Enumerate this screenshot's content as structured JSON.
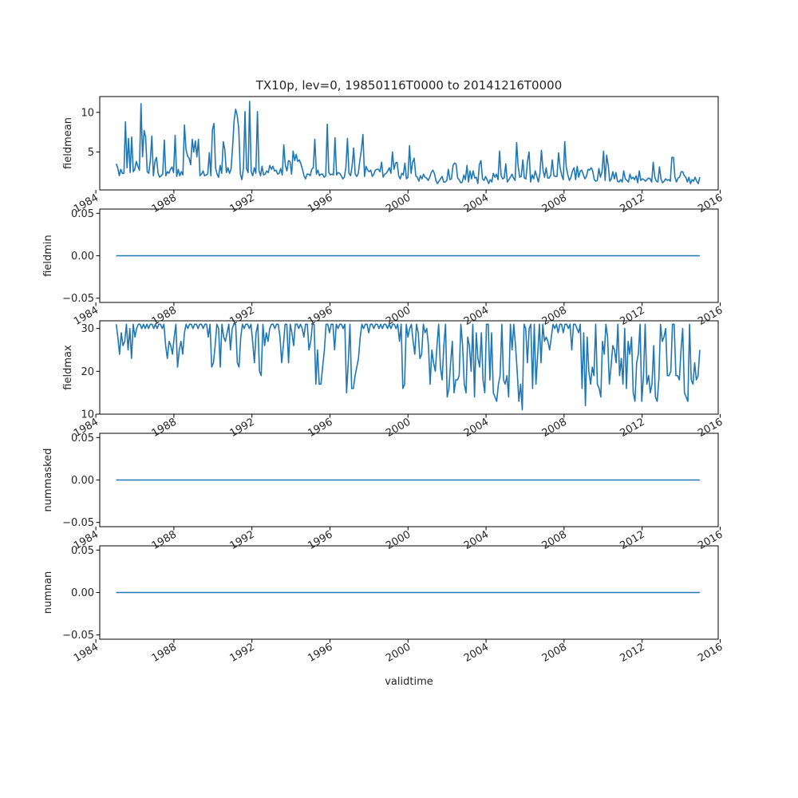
{
  "chart_data": [
    {
      "type": "line",
      "title": "TX10p, lev=0, 19850116T0000 to 20141216T0000",
      "ylabel": "fieldmean",
      "xlabel": "",
      "x_range": [
        "1985-01-16",
        "2014-12-16"
      ],
      "xlim": [
        1984.2,
        2015.9
      ],
      "ylim": [
        0.2,
        12.0
      ],
      "xticks": [
        1984,
        1988,
        1992,
        1996,
        2000,
        2004,
        2008,
        2012,
        2016
      ],
      "yticks": [
        5,
        10
      ],
      "ytick_labels": [
        "5",
        "10"
      ],
      "color": "#1f77b4",
      "values": [
        3.5,
        3.0,
        2.0,
        2.8,
        2.3,
        2.3,
        8.8,
        3.0,
        6.7,
        2.4,
        6.9,
        2.5,
        2.8,
        3.8,
        3.2,
        2.7,
        11.1,
        4.4,
        7.7,
        6.9,
        2.5,
        2.3,
        4.0,
        7.0,
        2.0,
        3.8,
        4.3,
        2.3,
        1.8,
        2.0,
        2.2,
        6.5,
        2.0,
        2.5,
        2.3,
        2.8,
        3.1,
        2.4,
        7.1,
        1.9,
        2.8,
        2.0,
        2.5,
        2.1,
        8.4,
        5.3,
        4.5,
        4.2,
        3.4,
        6.6,
        5.0,
        6.4,
        4.4,
        6.6,
        2.0,
        2.2,
        2.6,
        2.0,
        2.1,
        2.2,
        4.9,
        2.0,
        7.8,
        8.6,
        3.0,
        2.2,
        1.8,
        3.3,
        2.3,
        6.3,
        5.3,
        2.4,
        3.0,
        2.3,
        2.8,
        5.5,
        9.0,
        10.4,
        9.6,
        7.9,
        2.2,
        1.5,
        3.0,
        10.1,
        2.9,
        2.4,
        11.4,
        2.5,
        2.0,
        3.0,
        2.3,
        10.1,
        2.7,
        2.0,
        3.2,
        2.1,
        2.2,
        2.6,
        2.4,
        3.3,
        2.8,
        3.2,
        2.6,
        2.7,
        2.2,
        2.3,
        2.9,
        2.1,
        5.9,
        3.3,
        2.6,
        3.9,
        3.8,
        2.2,
        5.1,
        3.9,
        4.7,
        3.8,
        4.0,
        3.5,
        2.8,
        2.0,
        1.6,
        2.2,
        2.2,
        2.0,
        2.8,
        3.0,
        6.6,
        2.2,
        2.7,
        2.0,
        2.2,
        2.2,
        1.8,
        2.0,
        8.5,
        2.4,
        2.1,
        2.2,
        2.1,
        6.8,
        2.1,
        2.4,
        2.3,
        2.0,
        1.6,
        1.8,
        3.0,
        6.7,
        2.3,
        2.0,
        3.2,
        5.5,
        2.2,
        1.9,
        2.3,
        3.9,
        5.3,
        7.2,
        1.9,
        3.2,
        2.7,
        2.5,
        2.7,
        1.9,
        2.2,
        2.7,
        2.8,
        2.8,
        2.5,
        3.7,
        1.8,
        2.2,
        2.3,
        2.6,
        3.0,
        2.3,
        5.0,
        2.8,
        3.6,
        3.7,
        2.0,
        1.6,
        2.3,
        2.1,
        3.6,
        1.6,
        1.8,
        5.8,
        2.3,
        3.7,
        4.2,
        2.0,
        1.8,
        1.3,
        2.0,
        1.6,
        2.2,
        1.8,
        1.7,
        1.4,
        1.8,
        2.4,
        2.7,
        2.3,
        1.4,
        1.0,
        1.3,
        1.6,
        1.9,
        1.2,
        1.2,
        1.4,
        2.8,
        1.5,
        1.6,
        3.3,
        3.6,
        3.5,
        1.7,
        1.5,
        1.1,
        1.2,
        2.1,
        1.5,
        3.3,
        1.2,
        2.6,
        1.6,
        2.6,
        1.7,
        1.8,
        1.0,
        3.4,
        3.9,
        1.6,
        1.4,
        1.9,
        1.5,
        1.0,
        1.5,
        1.2,
        2.3,
        1.8,
        2.2,
        1.5,
        5.1,
        2.0,
        1.6,
        1.7,
        3.5,
        1.2,
        1.5,
        1.8,
        2.2,
        1.7,
        1.4,
        6.2,
        3.2,
        1.8,
        1.9,
        4.0,
        1.7,
        1.6,
        3.8,
        5.0,
        1.2,
        2.1,
        1.6,
        2.6,
        1.9,
        1.2,
        2.3,
        5.2,
        2.7,
        1.8,
        3.0,
        1.7,
        1.7,
        2.1,
        4.0,
        2.0,
        1.9,
        1.9,
        4.9,
        3.0,
        2.1,
        1.5,
        6.3,
        3.1,
        2.1,
        1.4,
        1.8,
        2.6,
        3.0,
        1.5,
        3.2,
        1.8,
        2.6,
        2.7,
        2.1,
        1.6,
        1.9,
        2.8,
        2.7,
        3.0,
        2.6,
        1.5,
        1.3,
        1.4,
        2.9,
        1.8,
        2.5,
        5.1,
        1.4,
        4.6,
        3.3,
        1.3,
        1.6,
        2.5,
        1.6,
        2.4,
        1.3,
        1.2,
        1.5,
        1.2,
        2.6,
        1.6,
        1.4,
        1.2,
        2.2,
        1.6,
        1.8,
        1.5,
        2.0,
        1.1,
        2.6,
        1.4,
        1.6,
        1.5,
        1.3,
        1.5,
        1.7,
        1.6,
        1.2,
        3.7,
        1.8,
        1.3,
        1.2,
        3.1,
        1.6,
        1.1,
        1.3,
        1.6,
        1.4,
        1.5,
        1.3,
        4.3,
        4.3,
        1.8,
        1.2,
        1.7,
        1.8,
        2.5,
        2.5,
        2.0,
        1.8,
        1.2,
        1.8,
        1.0,
        1.5,
        1.3,
        1.8,
        1.3,
        1.0,
        1.8
      ]
    },
    {
      "type": "line",
      "title": "",
      "ylabel": "fieldmin",
      "xlabel": "",
      "x_range": [
        "1985-01-16",
        "2014-12-16"
      ],
      "xlim": [
        1984.2,
        2015.9
      ],
      "ylim": [
        -0.055,
        0.055
      ],
      "xticks": [
        1984,
        1988,
        1992,
        1996,
        2000,
        2004,
        2008,
        2012,
        2016
      ],
      "yticks": [
        0.05,
        0.0,
        -0.05
      ],
      "ytick_labels": [
        "0.05",
        "0.00",
        "−0.05"
      ],
      "color": "#1f77b4",
      "constant_value": 0.0
    },
    {
      "type": "line",
      "title": "",
      "ylabel": "fieldmax",
      "xlabel": "",
      "x_range": [
        "1985-01-16",
        "2014-12-16"
      ],
      "xlim": [
        1984.2,
        2015.9
      ],
      "ylim": [
        10.0,
        31.8
      ],
      "xticks": [
        1984,
        1988,
        1992,
        1996,
        2000,
        2004,
        2008,
        2012,
        2016
      ],
      "yticks": [
        30,
        20,
        10
      ],
      "ytick_labels": [
        "30",
        "20",
        "10"
      ],
      "color": "#1f77b4",
      "values": [
        31,
        28,
        24,
        29,
        26,
        27,
        31,
        25,
        30,
        23,
        31,
        28,
        30,
        31,
        31,
        30,
        31,
        30,
        31,
        30,
        31,
        31,
        30,
        31,
        30,
        31,
        31,
        30,
        31,
        26,
        23,
        27,
        26,
        24,
        28,
        31,
        21,
        25,
        27,
        24,
        29,
        31,
        30,
        31,
        31,
        30,
        31,
        31,
        30,
        31,
        31,
        30,
        31,
        31,
        28,
        31,
        21,
        22,
        26,
        31,
        30,
        21,
        31,
        28,
        27,
        29,
        31,
        25,
        30,
        31,
        31,
        22,
        21,
        28,
        31,
        30,
        31,
        31,
        30,
        31,
        27,
        22,
        29,
        31,
        20,
        19,
        31,
        26,
        29,
        27,
        30,
        31,
        31,
        30,
        31,
        31,
        28,
        22,
        26,
        31,
        31,
        22,
        31,
        29,
        26,
        31,
        31,
        30,
        31,
        30,
        28,
        31,
        31,
        25,
        27,
        31,
        31,
        17,
        25,
        17,
        17,
        21,
        25,
        31,
        31,
        29,
        31,
        31,
        25,
        31,
        30,
        31,
        31,
        30,
        31,
        15,
        22,
        31,
        16,
        16,
        19,
        21,
        23,
        28,
        31,
        30,
        31,
        31,
        29,
        31,
        31,
        30,
        31,
        31,
        30,
        31,
        30,
        31,
        31,
        30,
        31,
        30,
        31,
        31,
        30,
        31,
        27,
        31,
        16,
        17,
        31,
        28,
        30,
        31,
        27,
        24,
        31,
        29,
        23,
        24,
        31,
        29,
        30,
        26,
        17,
        25,
        22,
        20,
        26,
        31,
        21,
        18,
        26,
        31,
        14,
        16,
        22,
        27,
        15,
        18,
        18,
        19,
        31,
        26,
        17,
        15,
        28,
        26,
        20,
        31,
        14,
        29,
        23,
        21,
        29,
        18,
        15,
        31,
        31,
        18,
        29,
        15,
        14,
        13,
        17,
        19,
        31,
        18,
        17,
        19,
        14,
        31,
        25,
        31,
        26,
        20,
        13,
        17,
        11,
        31,
        30,
        22,
        30,
        31,
        16,
        31,
        17,
        24,
        31,
        22,
        31,
        27,
        28,
        27,
        25,
        28,
        31,
        30,
        31,
        29,
        31,
        31,
        29,
        31,
        31,
        30,
        31,
        25,
        31,
        31,
        30,
        29,
        31,
        16,
        29,
        12,
        28,
        20,
        17,
        21,
        19,
        31,
        17,
        16,
        14,
        27,
        24,
        31,
        28,
        17,
        21,
        26,
        25,
        22,
        31,
        19,
        23,
        17,
        30,
        16,
        27,
        24,
        28,
        15,
        13,
        22,
        24,
        31,
        13,
        19,
        31,
        17,
        19,
        15,
        17,
        26,
        14,
        13,
        18,
        31,
        27,
        28,
        30,
        19,
        19,
        20,
        31,
        31,
        19,
        19,
        18,
        25,
        30,
        15,
        14,
        13,
        31,
        18,
        17,
        22,
        18,
        19,
        25
      ]
    },
    {
      "type": "line",
      "title": "",
      "ylabel": "nummasked",
      "xlabel": "",
      "x_range": [
        "1985-01-16",
        "2014-12-16"
      ],
      "xlim": [
        1984.2,
        2015.9
      ],
      "ylim": [
        -0.055,
        0.055
      ],
      "xticks": [
        1984,
        1988,
        1992,
        1996,
        2000,
        2004,
        2008,
        2012,
        2016
      ],
      "yticks": [
        0.05,
        0.0,
        -0.05
      ],
      "ytick_labels": [
        "0.05",
        "0.00",
        "−0.05"
      ],
      "color": "#1f77b4",
      "constant_value": 0.0
    },
    {
      "type": "line",
      "title": "",
      "ylabel": "numnan",
      "xlabel": "validtime",
      "x_range": [
        "1985-01-16",
        "2014-12-16"
      ],
      "xlim": [
        1984.2,
        2015.9
      ],
      "ylim": [
        -0.055,
        0.055
      ],
      "xticks": [
        1984,
        1988,
        1992,
        1996,
        2000,
        2004,
        2008,
        2012,
        2016
      ],
      "yticks": [
        0.05,
        0.0,
        -0.05
      ],
      "ytick_labels": [
        "0.05",
        "0.00",
        "−0.05"
      ],
      "color": "#1f77b4",
      "constant_value": 0.0
    }
  ]
}
